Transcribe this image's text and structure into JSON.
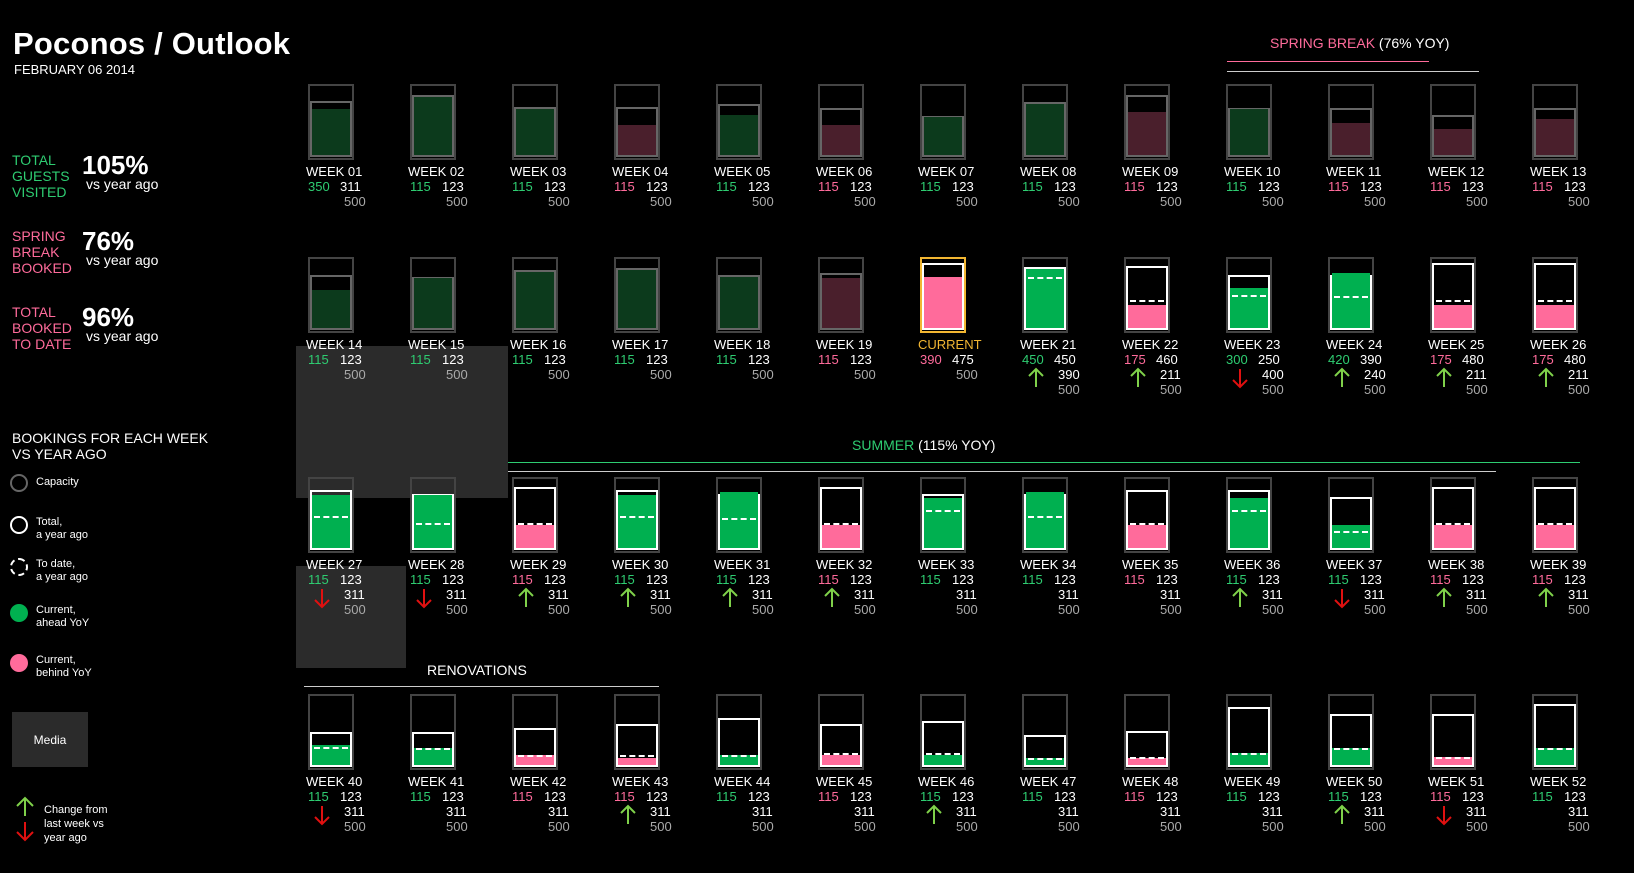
{
  "header": {
    "title": "Poconos / Outlook",
    "date": "FEBRUARY 06   2014"
  },
  "kpis": [
    {
      "label": "TOTAL\nGUESTS\nVISITED",
      "value": "105%",
      "sub": "vs year ago",
      "color": "#2ecc71"
    },
    {
      "label": "SPRING\nBREAK\nBOOKED",
      "value": "76%",
      "sub": "vs year ago",
      "color": "#ff6b9b"
    },
    {
      "label": "TOTAL\nBOOKED\nTO DATE",
      "value": "96%",
      "sub": "vs year ago",
      "color": "#ff6b9b"
    }
  ],
  "legend": {
    "title": "BOOKINGS FOR EACH WEEK\nVS YEAR AGO",
    "items": [
      {
        "key": "capacity",
        "text": "Capacity"
      },
      {
        "key": "total",
        "text": "Total,\na year ago"
      },
      {
        "key": "todate",
        "text": "To date,\na year ago"
      },
      {
        "key": "ahead",
        "text": "Current,\nahead YoY"
      },
      {
        "key": "behind",
        "text": "Current,\nbehind YoY"
      }
    ],
    "arrow_text": "Change from\nlast week vs\nyear ago"
  },
  "media_button": "Media",
  "sections": {
    "spring_break": {
      "name": "SPRING BREAK",
      "yoy": " (76% YOY)"
    },
    "summer": {
      "name": "SUMMER",
      "yoy": " (115% YOY)"
    },
    "renovations": {
      "name": "RENOVATIONS"
    }
  },
  "colors": {
    "ahead": "#00b050",
    "behind": "#ff6b9b",
    "ahead_dark": "#0c3a1c",
    "behind_dark": "#4a1f2c",
    "green_text": "#2ecc71",
    "pink_text": "#ff6b9b",
    "current": "#f2b632",
    "arrow_up": "#7fd14a",
    "arrow_down": "#e01010"
  },
  "weeks": [
    {
      "label": "WEEK 01",
      "current": "350",
      "total": "311",
      "capacity": "500",
      "status": "ahead",
      "fill_pct": 70,
      "total_pct": 80
    },
    {
      "label": "WEEK 02",
      "current": "115",
      "total": "123",
      "capacity": "500",
      "status": "ahead",
      "fill_pct": 88,
      "total_pct": 88
    },
    {
      "label": "WEEK 03",
      "current": "115",
      "total": "123",
      "capacity": "500",
      "status": "ahead",
      "fill_pct": 70,
      "total_pct": 72
    },
    {
      "label": "WEEK 04",
      "current": "115",
      "total": "123",
      "capacity": "500",
      "status": "behind",
      "fill_pct": 45,
      "total_pct": 72
    },
    {
      "label": "WEEK 05",
      "current": "115",
      "total": "123",
      "capacity": "500",
      "status": "ahead",
      "fill_pct": 60,
      "total_pct": 75
    },
    {
      "label": "WEEK 06",
      "current": "115",
      "total": "123",
      "capacity": "500",
      "status": "behind",
      "fill_pct": 45,
      "total_pct": 70
    },
    {
      "label": "WEEK 07",
      "current": "115",
      "total": "123",
      "capacity": "500",
      "status": "ahead",
      "fill_pct": 58,
      "total_pct": 58
    },
    {
      "label": "WEEK 08",
      "current": "115",
      "total": "123",
      "capacity": "500",
      "status": "ahead",
      "fill_pct": 78,
      "total_pct": 78
    },
    {
      "label": "WEEK 09",
      "current": "115",
      "total": "123",
      "capacity": "500",
      "status": "behind",
      "fill_pct": 65,
      "total_pct": 88
    },
    {
      "label": "WEEK 10",
      "current": "115",
      "total": "123",
      "capacity": "500",
      "status": "ahead",
      "fill_pct": 70,
      "total_pct": 70
    },
    {
      "label": "WEEK 11",
      "current": "115",
      "total": "123",
      "capacity": "500",
      "status": "behind",
      "fill_pct": 48,
      "total_pct": 70
    },
    {
      "label": "WEEK 12",
      "current": "115",
      "total": "123",
      "capacity": "500",
      "status": "behind",
      "fill_pct": 40,
      "total_pct": 60
    },
    {
      "label": "WEEK 13",
      "current": "115",
      "total": "123",
      "capacity": "500",
      "status": "behind",
      "fill_pct": 55,
      "total_pct": 70
    },
    {
      "label": "WEEK 14",
      "current": "115",
      "total": "123",
      "capacity": "500",
      "status": "ahead",
      "fill_pct": 58,
      "total_pct": 78,
      "hl": true
    },
    {
      "label": "WEEK 15",
      "current": "115",
      "total": "123",
      "capacity": "500",
      "status": "ahead",
      "fill_pct": 75,
      "total_pct": 75,
      "hl": true
    },
    {
      "label": "WEEK 16",
      "current": "115",
      "total": "123",
      "capacity": "500",
      "status": "ahead",
      "fill_pct": 85,
      "total_pct": 85
    },
    {
      "label": "WEEK 17",
      "current": "115",
      "total": "123",
      "capacity": "500",
      "status": "ahead",
      "fill_pct": 88,
      "total_pct": 88
    },
    {
      "label": "WEEK 18",
      "current": "115",
      "total": "123",
      "capacity": "500",
      "status": "ahead",
      "fill_pct": 78,
      "total_pct": 78
    },
    {
      "label": "WEEK 19",
      "current": "115",
      "total": "123",
      "capacity": "500",
      "status": "behind",
      "fill_pct": 75,
      "total_pct": 82
    },
    {
      "label": "CURRENT",
      "current": "390",
      "total": "475",
      "capacity": "500",
      "status": "current",
      "fill_pct": 78,
      "total_pct": 95
    },
    {
      "label": "WEEK 21",
      "current": "450",
      "total": "450",
      "todate": "390",
      "capacity": "500",
      "status": "ahead",
      "fill_pct": 90,
      "total_pct": 90,
      "todate_pct": 78,
      "white": true,
      "arrow": "up"
    },
    {
      "label": "WEEK 22",
      "current": "175",
      "total": "460",
      "todate": "211",
      "capacity": "500",
      "status": "behind",
      "fill_pct": 35,
      "total_pct": 92,
      "todate_pct": 42,
      "white": true,
      "arrow": "up"
    },
    {
      "label": "WEEK 23",
      "current": "300",
      "total": "250",
      "todate": "400",
      "capacity": "500",
      "status": "ahead",
      "fill_pct": 60,
      "total_pct": 78,
      "todate_pct": 50,
      "white": true,
      "arrow": "down"
    },
    {
      "label": "WEEK 24",
      "current": "420",
      "total": "390",
      "todate": "240",
      "capacity": "500",
      "status": "ahead",
      "fill_pct": 84,
      "total_pct": 78,
      "todate_pct": 48,
      "white": true,
      "arrow": "up"
    },
    {
      "label": "WEEK 25",
      "current": "175",
      "total": "480",
      "todate": "211",
      "capacity": "500",
      "status": "behind",
      "fill_pct": 35,
      "total_pct": 96,
      "todate_pct": 42,
      "white": true,
      "arrow": "up"
    },
    {
      "label": "WEEK 26",
      "current": "175",
      "total": "480",
      "todate": "211",
      "capacity": "500",
      "status": "behind",
      "fill_pct": 35,
      "total_pct": 96,
      "todate_pct": 42,
      "white": true,
      "arrow": "up"
    },
    {
      "label": "WEEK 27",
      "current": "115",
      "total": "123",
      "todate": "311",
      "capacity": "500",
      "status": "ahead",
      "fill_pct": 80,
      "total_pct": 85,
      "todate_pct": 48,
      "white": true,
      "arrow": "down",
      "hl": true
    },
    {
      "label": "WEEK 28",
      "current": "115",
      "total": "123",
      "todate": "311",
      "capacity": "500",
      "status": "ahead",
      "fill_pct": 80,
      "total_pct": 80,
      "todate_pct": 38,
      "white": true,
      "arrow": "down"
    },
    {
      "label": "WEEK 29",
      "current": "115",
      "total": "123",
      "todate": "311",
      "capacity": "500",
      "status": "behind",
      "fill_pct": 35,
      "total_pct": 90,
      "todate_pct": 38,
      "white": true,
      "arrow": "up"
    },
    {
      "label": "WEEK 30",
      "current": "115",
      "total": "123",
      "todate": "311",
      "capacity": "500",
      "status": "ahead",
      "fill_pct": 80,
      "total_pct": 85,
      "todate_pct": 48,
      "white": true,
      "arrow": "up"
    },
    {
      "label": "WEEK 31",
      "current": "115",
      "total": "123",
      "todate": "311",
      "capacity": "500",
      "status": "ahead",
      "fill_pct": 85,
      "total_pct": 80,
      "todate_pct": 45,
      "white": true,
      "arrow": "up"
    },
    {
      "label": "WEEK 32",
      "current": "115",
      "total": "123",
      "todate": "311",
      "capacity": "500",
      "status": "behind",
      "fill_pct": 35,
      "total_pct": 90,
      "todate_pct": 38,
      "white": true,
      "arrow": "up"
    },
    {
      "label": "WEEK 33",
      "current": "115",
      "total": "123",
      "todate": "311",
      "capacity": "500",
      "status": "ahead",
      "fill_pct": 75,
      "total_pct": 80,
      "todate_pct": 58,
      "white": true,
      "arrow": ""
    },
    {
      "label": "WEEK 34",
      "current": "115",
      "total": "123",
      "todate": "311",
      "capacity": "500",
      "status": "ahead",
      "fill_pct": 85,
      "total_pct": 80,
      "todate_pct": 48,
      "white": true,
      "arrow": ""
    },
    {
      "label": "WEEK 35",
      "current": "115",
      "total": "123",
      "todate": "311",
      "capacity": "500",
      "status": "behind",
      "fill_pct": 35,
      "total_pct": 85,
      "todate_pct": 38,
      "white": true,
      "arrow": ""
    },
    {
      "label": "WEEK 36",
      "current": "115",
      "total": "123",
      "todate": "311",
      "capacity": "500",
      "status": "ahead",
      "fill_pct": 75,
      "total_pct": 85,
      "todate_pct": 58,
      "white": true,
      "arrow": "up"
    },
    {
      "label": "WEEK 37",
      "current": "115",
      "total": "123",
      "todate": "311",
      "capacity": "500",
      "status": "ahead",
      "fill_pct": 35,
      "total_pct": 75,
      "todate_pct": 25,
      "white": true,
      "arrow": "down"
    },
    {
      "label": "WEEK 38",
      "current": "115",
      "total": "123",
      "todate": "311",
      "capacity": "500",
      "status": "behind",
      "fill_pct": 35,
      "total_pct": 90,
      "todate_pct": 38,
      "white": true,
      "arrow": "up"
    },
    {
      "label": "WEEK 39",
      "current": "115",
      "total": "123",
      "todate": "311",
      "capacity": "500",
      "status": "behind",
      "fill_pct": 35,
      "total_pct": 90,
      "todate_pct": 38,
      "white": true,
      "arrow": "up"
    },
    {
      "label": "WEEK 40",
      "current": "115",
      "total": "123",
      "todate": "311",
      "capacity": "500",
      "status": "ahead",
      "fill_pct": 30,
      "total_pct": 50,
      "todate_pct": 28,
      "white": true,
      "arrow": "down"
    },
    {
      "label": "WEEK 41",
      "current": "115",
      "total": "123",
      "todate": "311",
      "capacity": "500",
      "status": "ahead",
      "fill_pct": 25,
      "total_pct": 50,
      "todate_pct": 25,
      "white": true,
      "arrow": ""
    },
    {
      "label": "WEEK 42",
      "current": "115",
      "total": "123",
      "todate": "311",
      "capacity": "500",
      "status": "behind",
      "fill_pct": 15,
      "total_pct": 55,
      "todate_pct": 15,
      "white": true,
      "arrow": ""
    },
    {
      "label": "WEEK 43",
      "current": "115",
      "total": "123",
      "todate": "311",
      "capacity": "500",
      "status": "behind",
      "fill_pct": 10,
      "total_pct": 62,
      "todate_pct": 15,
      "white": true,
      "arrow": "up"
    },
    {
      "label": "WEEK 44",
      "current": "115",
      "total": "123",
      "todate": "311",
      "capacity": "500",
      "status": "ahead",
      "fill_pct": 15,
      "total_pct": 70,
      "todate_pct": 15,
      "white": true,
      "arrow": ""
    },
    {
      "label": "WEEK 45",
      "current": "115",
      "total": "123",
      "todate": "311",
      "capacity": "500",
      "status": "behind",
      "fill_pct": 15,
      "total_pct": 62,
      "todate_pct": 18,
      "white": true,
      "arrow": ""
    },
    {
      "label": "WEEK 46",
      "current": "115",
      "total": "123",
      "todate": "311",
      "capacity": "500",
      "status": "ahead",
      "fill_pct": 15,
      "total_pct": 65,
      "todate_pct": 18,
      "white": true,
      "arrow": "up"
    },
    {
      "label": "WEEK 47",
      "current": "115",
      "total": "123",
      "todate": "311",
      "capacity": "500",
      "status": "ahead",
      "fill_pct": 10,
      "total_pct": 45,
      "todate_pct": 10,
      "white": true,
      "arrow": ""
    },
    {
      "label": "WEEK 48",
      "current": "115",
      "total": "123",
      "todate": "311",
      "capacity": "500",
      "status": "behind",
      "fill_pct": 10,
      "total_pct": 52,
      "todate_pct": 12,
      "white": true,
      "arrow": ""
    },
    {
      "label": "WEEK 49",
      "current": "115",
      "total": "123",
      "todate": "311",
      "capacity": "500",
      "status": "ahead",
      "fill_pct": 18,
      "total_pct": 85,
      "todate_pct": 18,
      "white": true,
      "arrow": ""
    },
    {
      "label": "WEEK 50",
      "current": "115",
      "total": "123",
      "todate": "311",
      "capacity": "500",
      "status": "ahead",
      "fill_pct": 25,
      "total_pct": 75,
      "todate_pct": 25,
      "white": true,
      "arrow": "up"
    },
    {
      "label": "WEEK 51",
      "current": "115",
      "total": "123",
      "todate": "311",
      "capacity": "500",
      "status": "behind",
      "fill_pct": 12,
      "total_pct": 75,
      "todate_pct": 12,
      "white": true,
      "arrow": "down"
    },
    {
      "label": "WEEK 52",
      "current": "115",
      "total": "123",
      "todate": "311",
      "capacity": "500",
      "status": "ahead",
      "fill_pct": 25,
      "total_pct": 90,
      "todate_pct": 25,
      "white": true,
      "arrow": ""
    }
  ]
}
